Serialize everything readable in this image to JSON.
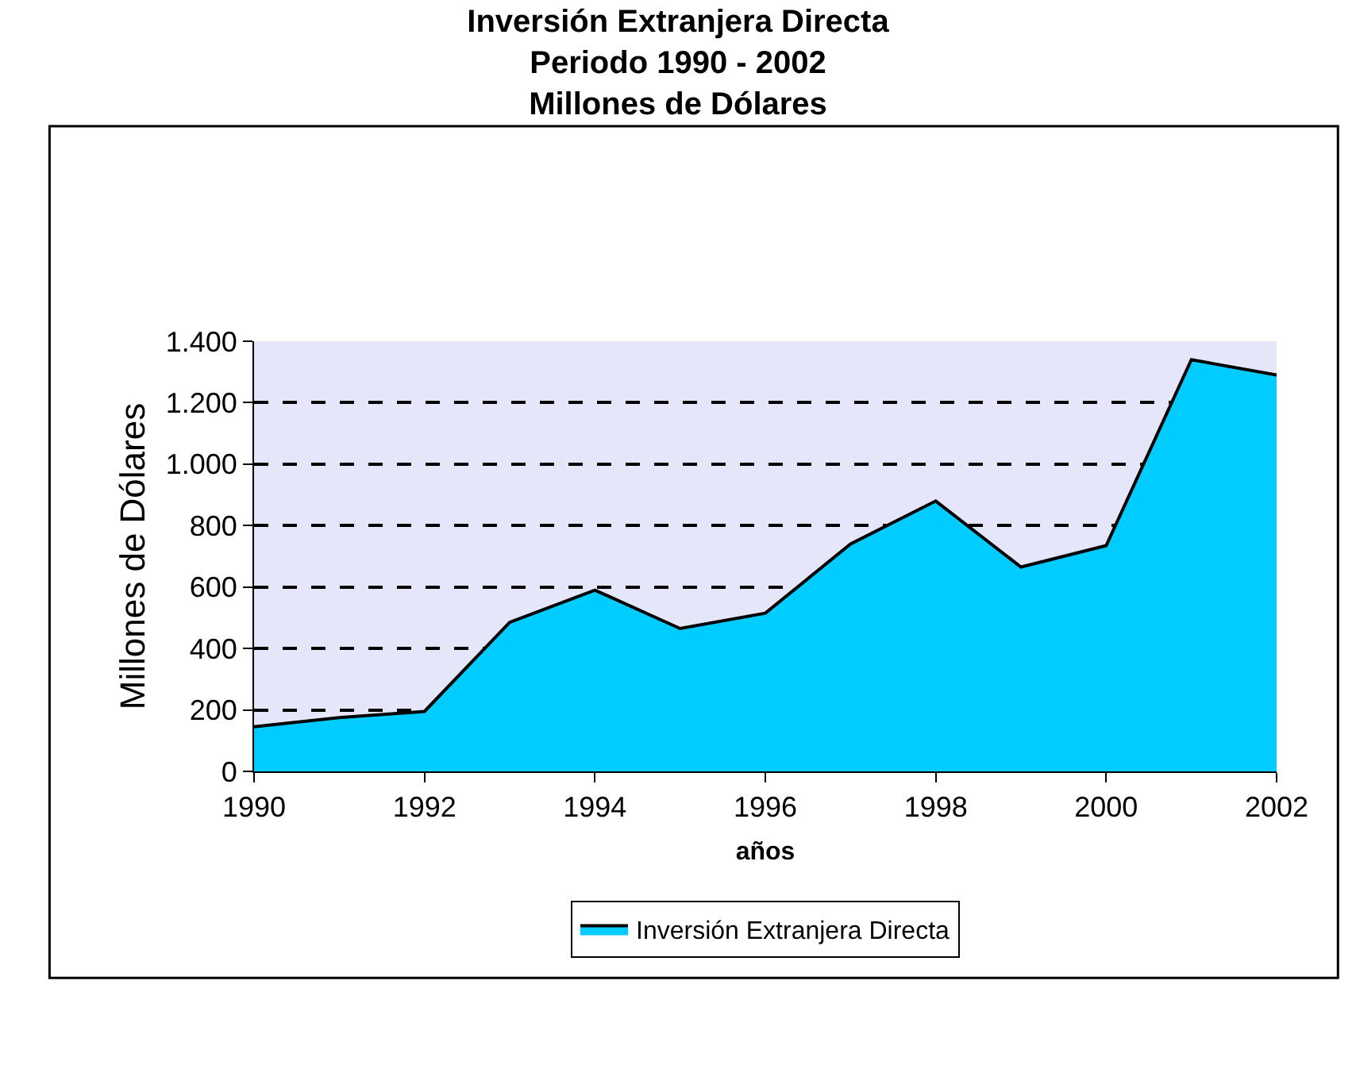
{
  "chart_data": {
    "type": "area",
    "title": "Inversión Extranjera Directa\nPeriodo 1990 - 2002\nMillones de Dólares",
    "xlabel": "años",
    "ylabel": "Millones de Dólares",
    "x": [
      1990,
      1991,
      1992,
      1993,
      1994,
      1995,
      1996,
      1997,
      1998,
      1999,
      2000,
      2001,
      2002
    ],
    "series": [
      {
        "name": "Inversión Extranjera Directa",
        "color": "#00ccff",
        "values": [
          145,
          175,
          195,
          485,
          590,
          465,
          515,
          740,
          880,
          665,
          735,
          1340,
          1290
        ]
      }
    ],
    "xlim": [
      1990,
      2002
    ],
    "xticks": [
      1990,
      1992,
      1994,
      1996,
      1998,
      2000,
      2002
    ],
    "ylim": [
      0,
      1400
    ],
    "yticks": [
      0,
      200,
      400,
      600,
      800,
      {
        "value": 1000,
        "label": "1.000"
      },
      {
        "value": 1200,
        "label": "1.200"
      },
      {
        "value": 1400,
        "label": "1.400"
      }
    ],
    "grid": "y",
    "legend": "bottom"
  }
}
